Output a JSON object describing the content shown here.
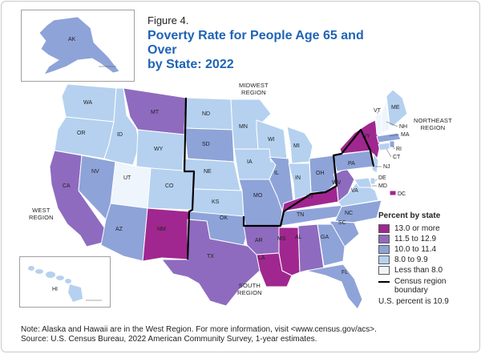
{
  "figure_label": "Figure 4.",
  "title_line1": "Poverty Rate for People Age 65 and Over",
  "title_line2": "by State: 2022",
  "regions": {
    "midwest": [
      "MIDWEST",
      "REGION"
    ],
    "northeast": [
      "NORTHEAST",
      "REGION"
    ],
    "west": [
      "WEST",
      "REGION"
    ],
    "south": [
      "SOUTH",
      "REGION"
    ]
  },
  "legend": {
    "title": "Percent by state",
    "items": [
      {
        "label": "13.0 or more",
        "color": "#a0278f"
      },
      {
        "label": "11.5 to 12.9",
        "color": "#8e6bbf"
      },
      {
        "label": "10.0 to 11.4",
        "color": "#8ea3d8"
      },
      {
        "label": "8.0 to 9.9",
        "color": "#b5d1ef"
      },
      {
        "label": "Less than 8.0",
        "color": "#eef5fc"
      }
    ],
    "boundary_label_1": "Census region",
    "boundary_label_2": "boundary"
  },
  "us_percent": "U.S. percent is 10.9",
  "note_line1": "Note: Alaska and Hawaii are in the West Region. For more information, visit <www.census.gov/acs>.",
  "note_line2": "Source: U.S. Census Bureau, 2022 American Community Survey, 1-year estimates.",
  "states": [
    {
      "abbr": "WA",
      "class": "8.0 to 9.9"
    },
    {
      "abbr": "OR",
      "class": "8.0 to 9.9"
    },
    {
      "abbr": "CA",
      "class": "11.5 to 12.9"
    },
    {
      "abbr": "NV",
      "class": "10.0 to 11.4"
    },
    {
      "abbr": "ID",
      "class": "8.0 to 9.9"
    },
    {
      "abbr": "MT",
      "class": "11.5 to 12.9"
    },
    {
      "abbr": "WY",
      "class": "8.0 to 9.9"
    },
    {
      "abbr": "UT",
      "class": "Less than 8.0"
    },
    {
      "abbr": "CO",
      "class": "8.0 to 9.9"
    },
    {
      "abbr": "AZ",
      "class": "10.0 to 11.4"
    },
    {
      "abbr": "NM",
      "class": "13.0 or more"
    },
    {
      "abbr": "ND",
      "class": "8.0 to 9.9"
    },
    {
      "abbr": "SD",
      "class": "10.0 to 11.4"
    },
    {
      "abbr": "NE",
      "class": "8.0 to 9.9"
    },
    {
      "abbr": "KS",
      "class": "8.0 to 9.9"
    },
    {
      "abbr": "MN",
      "class": "8.0 to 9.9"
    },
    {
      "abbr": "IA",
      "class": "8.0 to 9.9"
    },
    {
      "abbr": "MO",
      "class": "10.0 to 11.4"
    },
    {
      "abbr": "WI",
      "class": "8.0 to 9.9"
    },
    {
      "abbr": "IL",
      "class": "10.0 to 11.4"
    },
    {
      "abbr": "MI",
      "class": "8.0 to 9.9"
    },
    {
      "abbr": "IN",
      "class": "8.0 to 9.9"
    },
    {
      "abbr": "OH",
      "class": "10.0 to 11.4"
    },
    {
      "abbr": "OK",
      "class": "10.0 to 11.4"
    },
    {
      "abbr": "TX",
      "class": "11.5 to 12.9"
    },
    {
      "abbr": "AR",
      "class": "11.5 to 12.9"
    },
    {
      "abbr": "LA",
      "class": "13.0 or more"
    },
    {
      "abbr": "MS",
      "class": "13.0 or more"
    },
    {
      "abbr": "AL",
      "class": "11.5 to 12.9"
    },
    {
      "abbr": "TN",
      "class": "10.0 to 11.4"
    },
    {
      "abbr": "KY",
      "class": "13.0 or more"
    },
    {
      "abbr": "WV",
      "class": "11.5 to 12.9"
    },
    {
      "abbr": "VA",
      "class": "8.0 to 9.9"
    },
    {
      "abbr": "NC",
      "class": "10.0 to 11.4"
    },
    {
      "abbr": "SC",
      "class": "10.0 to 11.4"
    },
    {
      "abbr": "GA",
      "class": "10.0 to 11.4"
    },
    {
      "abbr": "FL",
      "class": "10.0 to 11.4"
    },
    {
      "abbr": "PA",
      "class": "10.0 to 11.4"
    },
    {
      "abbr": "NY",
      "class": "13.0 or more"
    },
    {
      "abbr": "NJ",
      "class": "8.0 to 9.9"
    },
    {
      "abbr": "DE",
      "class": "8.0 to 9.9"
    },
    {
      "abbr": "MD",
      "class": "8.0 to 9.9"
    },
    {
      "abbr": "DC",
      "class": "13.0 or more"
    },
    {
      "abbr": "CT",
      "class": "8.0 to 9.9"
    },
    {
      "abbr": "RI",
      "class": "10.0 to 11.4"
    },
    {
      "abbr": "MA",
      "class": "10.0 to 11.4"
    },
    {
      "abbr": "VT",
      "class": "Less than 8.0"
    },
    {
      "abbr": "NH",
      "class": "Less than 8.0"
    },
    {
      "abbr": "ME",
      "class": "8.0 to 9.9"
    },
    {
      "abbr": "AK",
      "class": "10.0 to 11.4"
    },
    {
      "abbr": "HI",
      "class": "8.0 to 9.9"
    }
  ]
}
